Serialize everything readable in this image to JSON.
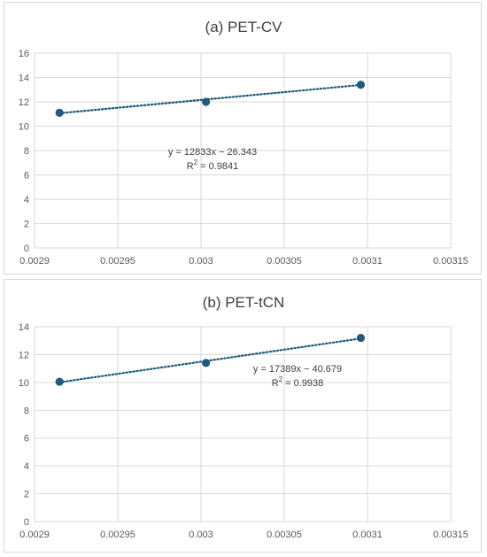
{
  "chart_data": [
    {
      "type": "scatter",
      "title": "(a) PET-CV",
      "xlim": [
        0.0029,
        0.00315
      ],
      "ylim": [
        0,
        16
      ],
      "x_ticks": [
        "0.0029",
        "0.00295",
        "0.003",
        "0.00305",
        "0.0031",
        "0.00315"
      ],
      "y_ticks": [
        "0",
        "2",
        "4",
        "6",
        "8",
        "10",
        "12",
        "14",
        "16"
      ],
      "grid": true,
      "series": [
        {
          "x": [
            0.002915,
            0.003003,
            0.003096
          ],
          "y": [
            11.1,
            12.0,
            13.4
          ]
        }
      ],
      "trendline": {
        "slope": 12833,
        "intercept": -26.343,
        "style": "dotted"
      },
      "equation": "y = 12833x − 26.343",
      "r2_prefix": "R",
      "r2_sup": "2",
      "r2_value": " = 0.9841",
      "marker_color": "#1f5c7a",
      "trend_color": "#1f5c7a"
    },
    {
      "type": "scatter",
      "title": "(b) PET-tCN",
      "xlim": [
        0.0029,
        0.00315
      ],
      "ylim": [
        0,
        14
      ],
      "x_ticks": [
        "0.0029",
        "0.00295",
        "0.003",
        "0.00305",
        "0.0031",
        "0.00315"
      ],
      "y_ticks": [
        "0",
        "2",
        "4",
        "6",
        "8",
        "10",
        "12",
        "14"
      ],
      "grid": true,
      "series": [
        {
          "x": [
            0.002915,
            0.003003,
            0.003096
          ],
          "y": [
            10.05,
            11.4,
            13.2
          ]
        }
      ],
      "trendline": {
        "slope": 17389,
        "intercept": -40.679,
        "style": "dotted"
      },
      "equation": "y = 17389x − 40.679",
      "r2_prefix": "R",
      "r2_sup": "2",
      "r2_value": " = 0.9938",
      "marker_color": "#1f5c7a",
      "trend_color": "#1f5c7a"
    }
  ]
}
